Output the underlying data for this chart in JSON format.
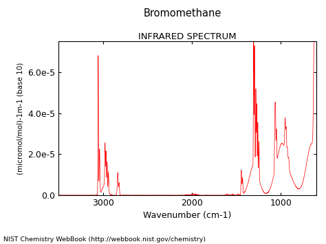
{
  "title_line1": "Bromomethane",
  "title_line2": "INFRARED SPECTRUM",
  "xlabel": "Wavenumber (cm-1)",
  "ylabel": "(micromol/mol)-1m-1 (base 10)",
  "footer": "NIST Chemistry WebBook (http://webbook.nist.gov/chemistry)",
  "xmin": 600,
  "xmax": 3500,
  "ymin": 0.0,
  "ymax": 7.5e-05,
  "xticks": [
    3000,
    2000,
    1000
  ],
  "yticks": [
    0.0,
    2e-05,
    4e-05,
    6e-05
  ],
  "ytick_labels": [
    "0.0",
    "2.0e-5",
    "4.0e-5",
    "6.0e-5"
  ],
  "line_color": "#ff0000",
  "bg_color": "#ffffff",
  "figsize": [
    4.74,
    3.55
  ],
  "dpi": 100
}
